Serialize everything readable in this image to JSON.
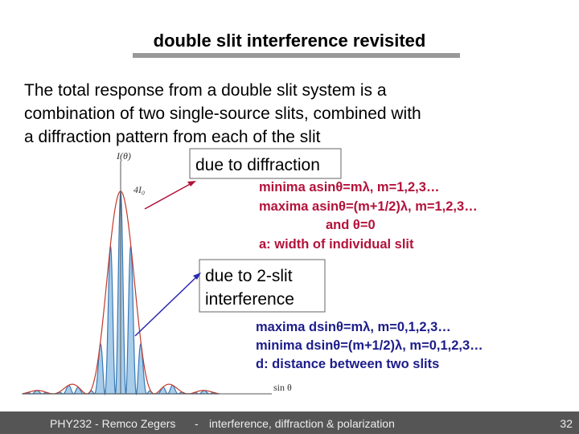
{
  "title": "double slit interference revisited",
  "body": {
    "lines": [
      "The total response from a double slit system is a",
      "combination of two single-source slits, combined with",
      "a diffraction pattern from each of the slit"
    ]
  },
  "figure": {
    "y_label": "I(θ)",
    "peak_label": "4I₀",
    "x_label": "sin θ"
  },
  "callouts": [
    {
      "lines": [
        "due to diffraction"
      ],
      "notes": [
        "minima asinθ=mλ, m=1,2,3…",
        "maxima asinθ=(m+1/2)λ, m=1,2,3…",
        "and θ=0",
        "a: width of individual slit"
      ]
    },
    {
      "lines": [
        "due to 2-slit",
        "interference"
      ],
      "notes": [
        "maxima dsinθ=mλ, m=0,1,2,3…",
        "minima dsinθ=(m+1/2)λ, m=0,1,2,3…",
        "d: distance between two slits"
      ]
    }
  ],
  "footer": {
    "course": "PHY232 - Remco Zegers",
    "separator": "-",
    "topic": "interference, diffraction & polarization",
    "page": "32"
  }
}
